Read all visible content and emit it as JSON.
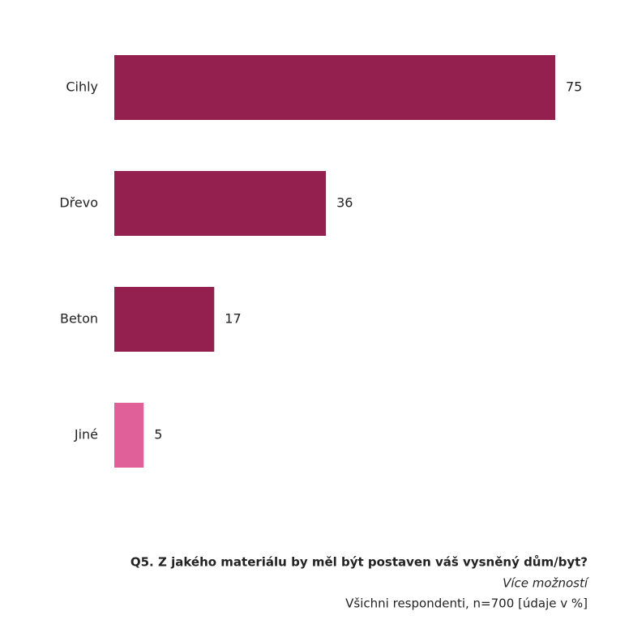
{
  "chart_data": {
    "type": "bar",
    "orientation": "horizontal",
    "title": "Q5. Z jakého materiálu by měl být postaven váš vysněný dům/byt?",
    "subtitle": "Více možností",
    "note": "Všichni respondenti, n=700 [údaje v %]",
    "categories": [
      "Cihly",
      "Dřevo",
      "Beton",
      "Jiné"
    ],
    "values": [
      75,
      36,
      17,
      5
    ],
    "colors": [
      "#93204f",
      "#93204f",
      "#93204f",
      "#e0609a"
    ]
  }
}
